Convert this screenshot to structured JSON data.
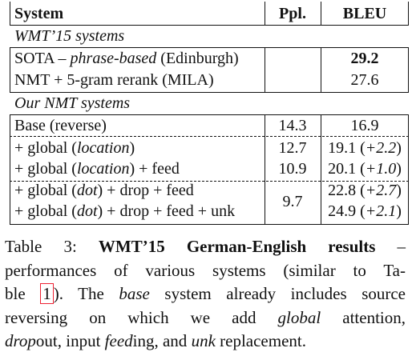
{
  "table": {
    "headers": {
      "system": "System",
      "ppl": "Ppl.",
      "bleu": "BLEU"
    },
    "sections": [
      {
        "title": "WMT’15 systems"
      },
      {
        "title": "Our NMT systems"
      }
    ],
    "rows": [
      {
        "system_a": "SOTA – ",
        "system_i": "phrase-based",
        "system_b": " (Edinburgh)",
        "ppl": "",
        "bleu": "29.2"
      },
      {
        "system": "NMT + 5-gram rerank (MILA)",
        "ppl": "",
        "bleu": "27.6"
      },
      {
        "system": "Base (reverse)",
        "ppl": "14.3",
        "bleu": "16.9"
      },
      {
        "system_a": "+ global (",
        "system_i": "location",
        "system_b": ")",
        "ppl": "12.7",
        "bleu": "19.1 (",
        "gain": "+2.2",
        "bleu_close": ")"
      },
      {
        "system_a": "+ global (",
        "system_i": "location",
        "system_b": ") + feed",
        "ppl": "10.9",
        "bleu": "20.1 (",
        "gain": "+1.0",
        "bleu_close": ")"
      },
      {
        "system_a": "+ global (",
        "system_i": "dot",
        "system_b": ") + drop + feed",
        "bleu": "22.8 (",
        "gain": "+2.7",
        "bleu_close": ")"
      },
      {
        "system_a": "+ global (",
        "system_i": "dot",
        "system_b": ") + drop + feed + unk",
        "bleu": "24.9 (",
        "gain": "+2.1",
        "bleu_close": ")"
      }
    ],
    "shared_ppl": "9.7"
  },
  "caption": {
    "label": "Table 3:",
    "bold_title": "WMT’15 German-English results",
    "dash": " –",
    "line2": "performances of various systems (similar to Ta-",
    "line3_a": "ble ",
    "ref": "1",
    "line3_b": "). The ",
    "line3_i": "base",
    "line3_c": " system already includes source",
    "line4_a": "reversing on which we add ",
    "line4_i": "global",
    "line4_b": " attention,",
    "line5_i1": "drop",
    "line5_a": "out, input ",
    "line5_i2": "feed",
    "line5_b": "ing, and ",
    "line5_i3": "unk",
    "line5_c": " replacement."
  }
}
